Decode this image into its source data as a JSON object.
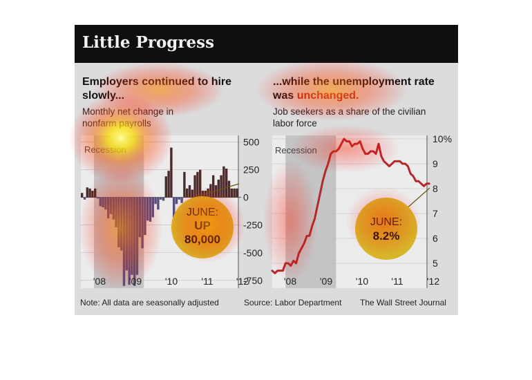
{
  "figure_title": "Little Progress",
  "footer": {
    "note": "Note: All data are seasonally adjusted",
    "source": "Source: Labor Department",
    "credit": "The Wall Street Journal"
  },
  "left": {
    "heading_line1": "Employers continued to hire",
    "heading_line2": "slowly...",
    "subtitle_line1": "Monthly net change in",
    "subtitle_line2": "nonfarm payrolls",
    "recession_label": "Recession",
    "callout_line1": "JUNE:",
    "callout_line2": "UP",
    "callout_line3": "80,000"
  },
  "right": {
    "heading_line1": "...while the unemployment rate",
    "heading_line2_pre": "was ",
    "heading_line2_em": "unchanged.",
    "subtitle_line1": "Job seekers as a share of the civilian",
    "subtitle_line2": "labor force",
    "recession_label": "Recession",
    "callout_line1": "JUNE:",
    "callout_line2": "8.2%"
  },
  "colors": {
    "bar_positive": "#4a2a2a",
    "bar_negative": "#54507e",
    "line": "#b3282a",
    "callout": "#d8b429",
    "recession_shade": "#c4c4c4",
    "plot_bg": "#ececec"
  },
  "chart_data": [
    {
      "type": "bar",
      "title": "Employers continued to hire slowly...",
      "subtitle": "Monthly net change in nonfarm payrolls",
      "x_tick_labels": [
        "'08",
        "'09",
        "'10",
        "'11",
        "'12"
      ],
      "y_ticks": [
        500,
        250,
        0,
        -250,
        -500,
        -750
      ],
      "ylim": [
        -820,
        560
      ],
      "recession": {
        "start": "2007-12",
        "end": "2009-06"
      },
      "x": [
        "2007-07",
        "2007-08",
        "2007-09",
        "2007-10",
        "2007-11",
        "2007-12",
        "2008-01",
        "2008-02",
        "2008-03",
        "2008-04",
        "2008-05",
        "2008-06",
        "2008-07",
        "2008-08",
        "2008-09",
        "2008-10",
        "2008-11",
        "2008-12",
        "2009-01",
        "2009-02",
        "2009-03",
        "2009-04",
        "2009-05",
        "2009-06",
        "2009-07",
        "2009-08",
        "2009-09",
        "2009-10",
        "2009-11",
        "2009-12",
        "2010-01",
        "2010-02",
        "2010-03",
        "2010-04",
        "2010-05",
        "2010-06",
        "2010-07",
        "2010-08",
        "2010-09",
        "2010-10",
        "2010-11",
        "2010-12",
        "2011-01",
        "2011-02",
        "2011-03",
        "2011-04",
        "2011-05",
        "2011-06",
        "2011-07",
        "2011-08",
        "2011-09",
        "2011-10",
        "2011-11",
        "2011-12",
        "2012-01",
        "2012-02",
        "2012-03",
        "2012-04",
        "2012-05",
        "2012-06"
      ],
      "values": [
        40,
        -20,
        90,
        80,
        60,
        80,
        -10,
        -80,
        -90,
        -110,
        -190,
        -150,
        -200,
        -270,
        -450,
        -480,
        -800,
        -660,
        -790,
        -700,
        -800,
        -700,
        -360,
        -460,
        -340,
        -210,
        -220,
        -180,
        -60,
        -110,
        -20,
        -30,
        190,
        240,
        450,
        -180,
        -60,
        -20,
        -50,
        230,
        80,
        110,
        70,
        200,
        230,
        250,
        60,
        60,
        80,
        120,
        200,
        110,
        160,
        200,
        280,
        260,
        150,
        80,
        80,
        80
      ],
      "annotation": "JUNE: UP 80,000"
    },
    {
      "type": "line",
      "title": "...while the unemployment rate was unchanged.",
      "subtitle": "Job seekers as a share of the civilian labor force",
      "x_tick_labels": [
        "'08",
        "'09",
        "'10",
        "'11",
        "'12"
      ],
      "y_ticks": [
        5,
        6,
        7,
        8,
        9,
        10
      ],
      "y_tick_labels": [
        "5",
        "6",
        "7",
        "8",
        "9",
        "10%"
      ],
      "ylim": [
        4.8,
        10
      ],
      "recession": {
        "start": "2007-12",
        "end": "2009-06"
      },
      "x": [
        "2007-07",
        "2007-08",
        "2007-09",
        "2007-10",
        "2007-11",
        "2007-12",
        "2008-01",
        "2008-02",
        "2008-03",
        "2008-04",
        "2008-05",
        "2008-06",
        "2008-07",
        "2008-08",
        "2008-09",
        "2008-10",
        "2008-11",
        "2008-12",
        "2009-01",
        "2009-02",
        "2009-03",
        "2009-04",
        "2009-05",
        "2009-06",
        "2009-07",
        "2009-08",
        "2009-09",
        "2009-10",
        "2009-11",
        "2009-12",
        "2010-01",
        "2010-02",
        "2010-03",
        "2010-04",
        "2010-05",
        "2010-06",
        "2010-07",
        "2010-08",
        "2010-09",
        "2010-10",
        "2010-11",
        "2010-12",
        "2011-01",
        "2011-02",
        "2011-03",
        "2011-04",
        "2011-05",
        "2011-06",
        "2011-07",
        "2011-08",
        "2011-09",
        "2011-10",
        "2011-11",
        "2011-12",
        "2012-01",
        "2012-02",
        "2012-03",
        "2012-04",
        "2012-05",
        "2012-06"
      ],
      "values": [
        4.7,
        4.6,
        4.7,
        4.7,
        4.7,
        5.0,
        5.0,
        4.9,
        5.1,
        5.0,
        5.4,
        5.6,
        5.8,
        6.1,
        6.1,
        6.5,
        6.8,
        7.3,
        7.8,
        8.3,
        8.7,
        9.0,
        9.4,
        9.5,
        9.5,
        9.6,
        9.8,
        10.0,
        9.9,
        9.9,
        9.7,
        9.8,
        9.8,
        9.9,
        9.6,
        9.4,
        9.4,
        9.5,
        9.5,
        9.4,
        9.8,
        9.3,
        9.1,
        9.0,
        8.9,
        9.0,
        9.1,
        9.1,
        9.1,
        9.0,
        9.0,
        8.9,
        8.6,
        8.5,
        8.3,
        8.3,
        8.2,
        8.1,
        8.2,
        8.2
      ],
      "annotation": "JUNE: 8.2%"
    }
  ]
}
